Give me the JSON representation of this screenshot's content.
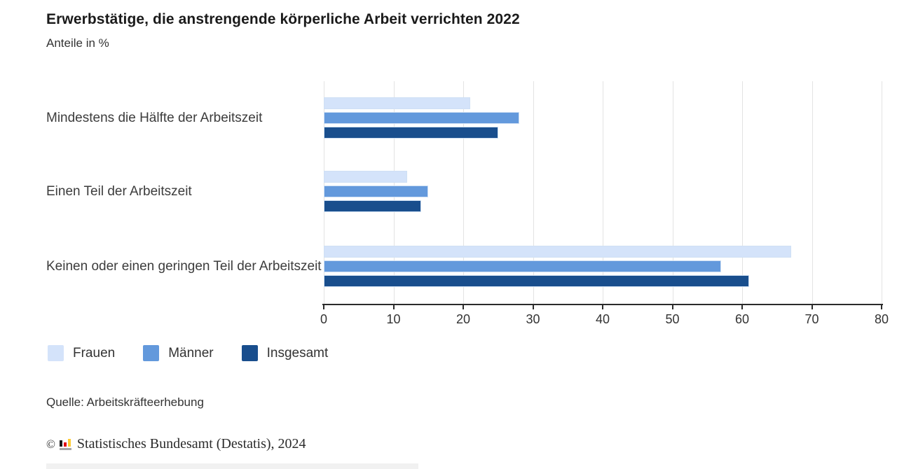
{
  "header": {
    "title": "Erwerbstätige, die anstrengende körperliche Arbeit verrichten 2022",
    "subtitle": "Anteile in %"
  },
  "chart_data": {
    "type": "bar",
    "orientation": "horizontal",
    "title": "Erwerbstätige, die anstrengende körperliche Arbeit verrichten 2022",
    "subtitle": "Anteile in %",
    "unit": "%",
    "categories": [
      "Mindestens die Hälfte der Arbeitszeit",
      "Einen Teil der Arbeitszeit",
      "Keinen oder einen geringen Teil der Arbeitszeit"
    ],
    "series": [
      {
        "name": "Frauen",
        "color": "#d4e3fa",
        "values": [
          21,
          12,
          67
        ]
      },
      {
        "name": "Männer",
        "color": "#6399dc",
        "values": [
          28,
          15,
          57
        ]
      },
      {
        "name": "Insgesamt",
        "color": "#194e8d",
        "values": [
          25,
          14,
          61
        ]
      }
    ],
    "xlim": [
      0,
      80
    ],
    "xticks": [
      0,
      10,
      20,
      30,
      40,
      50,
      60,
      70,
      80
    ],
    "grid": true,
    "legend_position": "bottom"
  },
  "colors": {
    "axis": "#2b2b2b",
    "grid": "#e3e3e3",
    "bar_border": "#cfe0f4"
  },
  "footer": {
    "source": "Quelle: Arbeitskräfteerhebung",
    "copyright_symbol": "©",
    "copyright_text": "Statistisches Bundesamt (Destatis), 2024"
  }
}
